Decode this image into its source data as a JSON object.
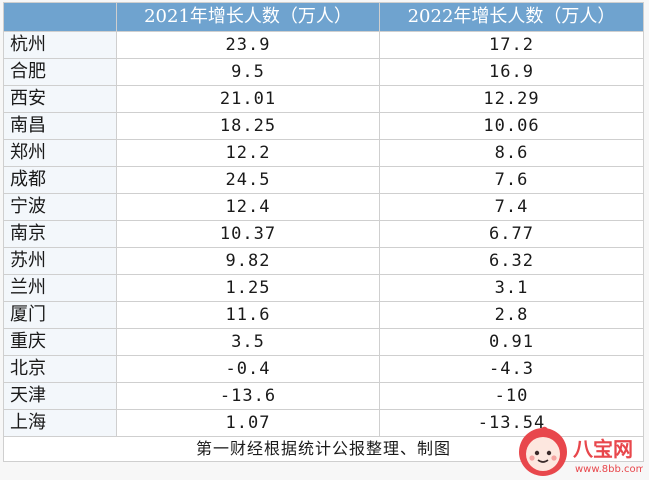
{
  "chart_data": {
    "type": "table",
    "columns": [
      "",
      "2021年增长人数（万人）",
      "2022年增长人数（万人）"
    ],
    "categories": [
      "杭州",
      "合肥",
      "西安",
      "南昌",
      "郑州",
      "成都",
      "宁波",
      "南京",
      "苏州",
      "兰州",
      "厦门",
      "重庆",
      "北京",
      "天津",
      "上海"
    ],
    "series": [
      {
        "name": "2021年增长人数（万人）",
        "values": [
          23.9,
          9.5,
          21.01,
          18.25,
          12.2,
          24.5,
          12.4,
          10.37,
          9.82,
          1.25,
          11.6,
          3.5,
          -0.4,
          -13.6,
          1.07
        ],
        "display": [
          "23.9",
          "9.5",
          "21.01",
          "18.25",
          "12.2",
          "24.5",
          "12.4",
          "10.37",
          "9.82",
          "1.25",
          "11.6",
          "3.5",
          "-0.4",
          "-13.6",
          "1.07"
        ]
      },
      {
        "name": "2022年增长人数（万人）",
        "values": [
          17.2,
          16.9,
          12.29,
          10.06,
          8.6,
          7.6,
          7.4,
          6.77,
          6.32,
          3.1,
          2.8,
          0.91,
          -4.3,
          -10,
          -13.54
        ],
        "display": [
          "17.2",
          "16.9",
          "12.29",
          "10.06",
          "8.6",
          "7.6",
          "7.4",
          "6.77",
          "6.32",
          "3.1",
          "2.8",
          "0.91",
          "-4.3",
          "-10",
          "-13.54"
        ]
      }
    ],
    "source_note": "第一财经根据统计公报整理、制图"
  },
  "watermark": {
    "text": "八宝网",
    "url_text": "www.8bb.com",
    "color": "#e8474c"
  },
  "colors": {
    "header_bg": "#6fa3cf",
    "header_text": "#ffffff",
    "grid": "#cfcfcf"
  }
}
